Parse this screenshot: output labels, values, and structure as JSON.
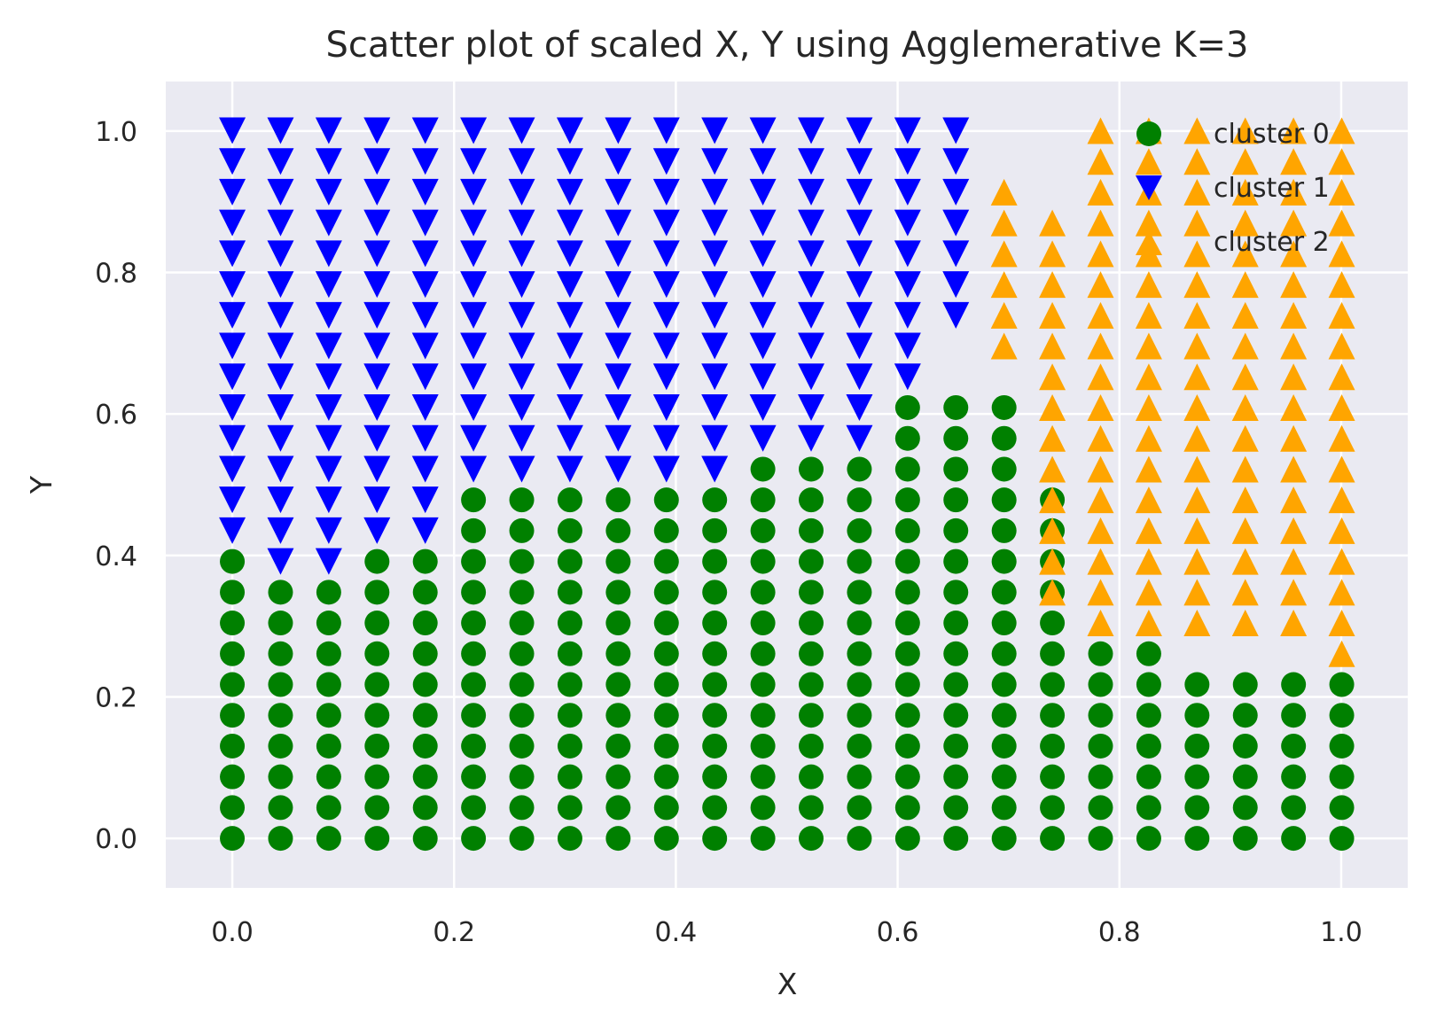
{
  "chart_data": {
    "type": "scatter",
    "title": "Scatter plot of scaled X, Y using Agglemerative K=3",
    "xlabel": "X",
    "ylabel": "Y",
    "xlim": [
      -0.06,
      1.06
    ],
    "ylim": [
      -0.07,
      1.07
    ],
    "xticks": [
      0.0,
      0.2,
      0.4,
      0.6,
      0.8,
      1.0
    ],
    "yticks": [
      0.0,
      0.2,
      0.4,
      0.6,
      0.8,
      1.0
    ],
    "xtick_labels": [
      "0.0",
      "0.2",
      "0.4",
      "0.6",
      "0.8",
      "1.0"
    ],
    "ytick_labels": [
      "0.0",
      "0.2",
      "0.4",
      "0.6",
      "0.8",
      "1.0"
    ],
    "grid": true,
    "legend_position": "top-right",
    "background_color": "#eaeaf2",
    "grid_step": 0.0435,
    "grid_count": 24,
    "series": [
      {
        "name": "cluster 0",
        "marker": "circle",
        "color": "#008000",
        "column_max_row": [
          9,
          8,
          8,
          9,
          9,
          11,
          11,
          11,
          11,
          11,
          11,
          12,
          12,
          12,
          14,
          14,
          14,
          11,
          6,
          6,
          5,
          5,
          5,
          5
        ]
      },
      {
        "name": "cluster 1",
        "marker": "triangle-down",
        "color": "#0000ff",
        "columns": [
          [
            10,
            23
          ],
          [
            9,
            23
          ],
          [
            9,
            23
          ],
          [
            10,
            23
          ],
          [
            10,
            23
          ],
          [
            12,
            23
          ],
          [
            12,
            23
          ],
          [
            12,
            23
          ],
          [
            12,
            23
          ],
          [
            12,
            23
          ],
          [
            12,
            23
          ],
          [
            13,
            23
          ],
          [
            13,
            23
          ],
          [
            13,
            23
          ],
          [
            15,
            23
          ],
          [
            17,
            23
          ]
        ]
      },
      {
        "name": "cluster 2",
        "marker": "triangle-up",
        "color": "#ffa500",
        "columns": [
          [
            16,
            21
          ],
          [
            8,
            20
          ],
          [
            7,
            23
          ],
          [
            7,
            23
          ],
          [
            7,
            23
          ],
          [
            7,
            23
          ],
          [
            7,
            23
          ],
          [
            6,
            23
          ]
        ]
      }
    ]
  }
}
